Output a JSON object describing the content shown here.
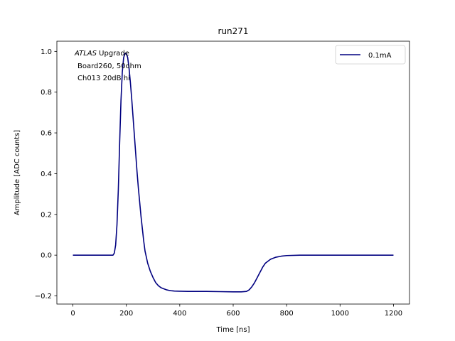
{
  "chart_data": {
    "type": "line",
    "title": "run271",
    "xlabel": "Time [ns]",
    "ylabel": "Amplitude [ADC counts]",
    "xlim": [
      -60,
      1260
    ],
    "ylim": [
      -0.24,
      1.05
    ],
    "xticks": [
      0,
      200,
      400,
      600,
      800,
      1000,
      1200
    ],
    "yticks": [
      -0.2,
      0.0,
      0.2,
      0.4,
      0.6,
      0.8,
      1.0
    ],
    "xtick_labels": [
      "0",
      "200",
      "400",
      "600",
      "800",
      "1000",
      "1200"
    ],
    "ytick_labels": [
      "−0.2",
      "0.0",
      "0.2",
      "0.4",
      "0.6",
      "0.8",
      "1.0"
    ],
    "legend_position": "top-right",
    "grid": false,
    "annotation": {
      "italic": "ATLAS",
      "line1_rest": " Upgrade",
      "line2": "Board260, 50ohm",
      "line3": "Ch013 20dB hi"
    },
    "series": [
      {
        "name": "0.1mA",
        "color": "#000080",
        "x": [
          0,
          50,
          100,
          140,
          150,
          155,
          160,
          165,
          170,
          175,
          180,
          185,
          190,
          195,
          200,
          205,
          210,
          215,
          220,
          225,
          230,
          235,
          240,
          245,
          250,
          255,
          260,
          265,
          270,
          280,
          290,
          300,
          310,
          320,
          330,
          340,
          350,
          360,
          370,
          380,
          400,
          430,
          460,
          500,
          550,
          600,
          630,
          650,
          660,
          670,
          680,
          690,
          700,
          710,
          720,
          730,
          740,
          760,
          780,
          800,
          850,
          900,
          1000,
          1100,
          1200
        ],
        "y": [
          0.0,
          0.0,
          0.0,
          0.0,
          0.0,
          0.01,
          0.05,
          0.15,
          0.32,
          0.55,
          0.76,
          0.9,
          0.97,
          0.99,
          0.99,
          0.97,
          0.92,
          0.85,
          0.77,
          0.68,
          0.59,
          0.5,
          0.41,
          0.33,
          0.26,
          0.19,
          0.13,
          0.07,
          0.02,
          -0.04,
          -0.08,
          -0.11,
          -0.135,
          -0.15,
          -0.16,
          -0.165,
          -0.17,
          -0.173,
          -0.175,
          -0.176,
          -0.177,
          -0.178,
          -0.178,
          -0.178,
          -0.179,
          -0.18,
          -0.18,
          -0.178,
          -0.17,
          -0.155,
          -0.135,
          -0.11,
          -0.085,
          -0.06,
          -0.04,
          -0.03,
          -0.02,
          -0.01,
          -0.005,
          -0.002,
          0.0,
          0.0,
          0.0,
          0.0,
          0.0
        ]
      }
    ]
  }
}
